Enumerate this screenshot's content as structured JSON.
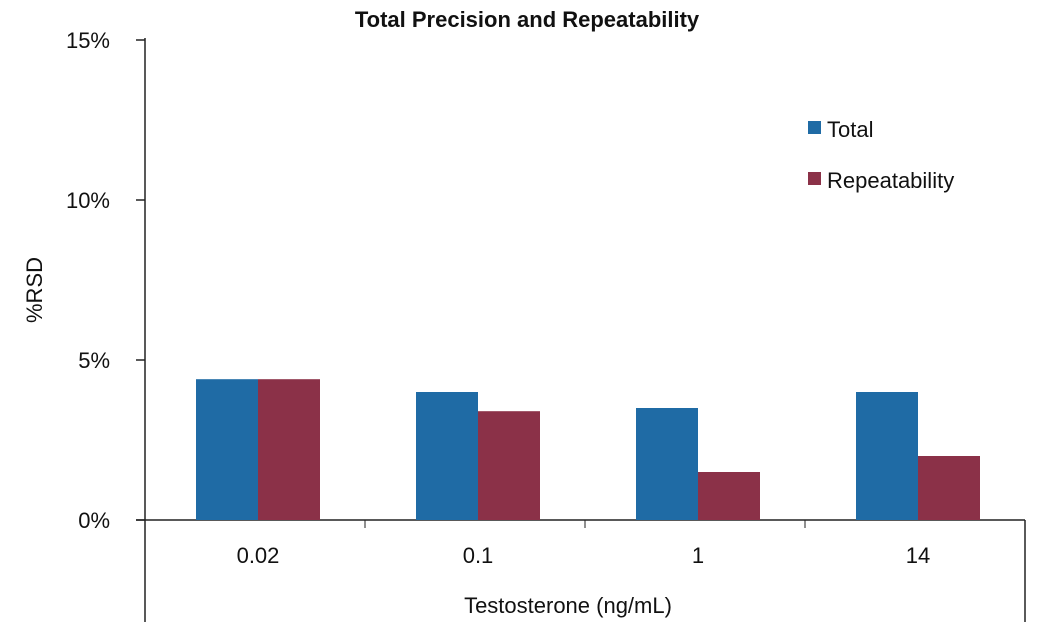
{
  "chart_data": {
    "type": "bar",
    "title": "Total Precision and Repeatability",
    "xlabel": "Testosterone (ng/mL)",
    "ylabel": "%RSD",
    "categories": [
      "0.02",
      "0.1",
      "1",
      "14"
    ],
    "series": [
      {
        "name": "Total",
        "color": "#1f6ba5",
        "values": [
          4.4,
          4.0,
          3.5,
          4.0
        ]
      },
      {
        "name": "Repeatability",
        "color": "#8b3148",
        "values": [
          4.4,
          3.4,
          1.5,
          2.0
        ]
      }
    ],
    "ylim": [
      0,
      15
    ],
    "yticks": [
      0,
      5,
      10,
      15
    ],
    "ytick_labels": [
      "0%",
      "5%",
      "10%",
      "15%"
    ],
    "legend_position": "top-right",
    "grid": false
  }
}
